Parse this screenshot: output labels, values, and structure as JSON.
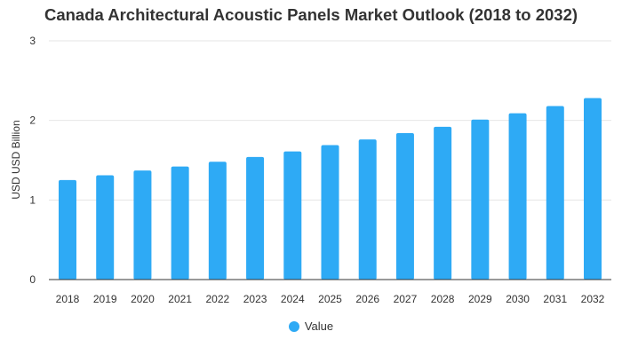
{
  "chart_data": {
    "type": "bar",
    "title": "Canada Architectural Acoustic Panels Market Outlook (2018 to 2032)",
    "xlabel": "",
    "ylabel": "USD USD Billion",
    "categories": [
      "2018",
      "2019",
      "2020",
      "2021",
      "2022",
      "2023",
      "2024",
      "2025",
      "2026",
      "2027",
      "2028",
      "2029",
      "2030",
      "2031",
      "2032"
    ],
    "series": [
      {
        "name": "Value",
        "values": [
          1.25,
          1.31,
          1.37,
          1.42,
          1.48,
          1.54,
          1.61,
          1.69,
          1.76,
          1.84,
          1.92,
          2.01,
          2.09,
          2.18,
          2.28
        ]
      }
    ],
    "ylim": [
      0,
      3
    ],
    "yticks": [
      "0",
      "1",
      "2",
      "3"
    ],
    "grid": true,
    "legend": "bottom-center",
    "colors": {
      "bar": "#2eaaf5",
      "grid": "#e6e6e6",
      "axis": "#333333",
      "text": "#333333"
    }
  }
}
